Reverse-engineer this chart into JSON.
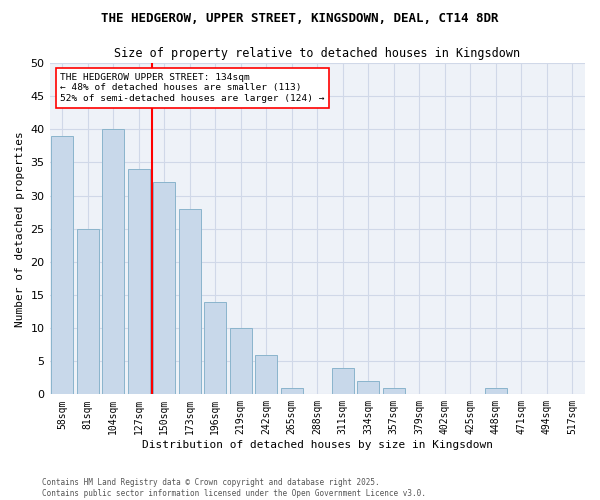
{
  "title_line1": "THE HEDGEROW, UPPER STREET, KINGSDOWN, DEAL, CT14 8DR",
  "title_line2": "Size of property relative to detached houses in Kingsdown",
  "xlabel": "Distribution of detached houses by size in Kingsdown",
  "ylabel": "Number of detached properties",
  "categories": [
    "58sqm",
    "81sqm",
    "104sqm",
    "127sqm",
    "150sqm",
    "173sqm",
    "196sqm",
    "219sqm",
    "242sqm",
    "265sqm",
    "288sqm",
    "311sqm",
    "334sqm",
    "357sqm",
    "379sqm",
    "402sqm",
    "425sqm",
    "448sqm",
    "471sqm",
    "494sqm",
    "517sqm"
  ],
  "values": [
    39,
    25,
    40,
    34,
    32,
    28,
    14,
    10,
    6,
    1,
    0,
    4,
    2,
    1,
    0,
    0,
    0,
    1,
    0,
    0,
    0
  ],
  "bar_color": "#c8d8ea",
  "bar_edge_color": "#8ab4cc",
  "grid_color": "#d0d8e8",
  "bg_color": "#eef2f8",
  "vline_bar_index": 3,
  "vline_color": "red",
  "annotation_text": "THE HEDGEROW UPPER STREET: 134sqm\n← 48% of detached houses are smaller (113)\n52% of semi-detached houses are larger (124) →",
  "annotation_box_color": "white",
  "annotation_box_edge": "red",
  "ylim": [
    0,
    50
  ],
  "yticks": [
    0,
    5,
    10,
    15,
    20,
    25,
    30,
    35,
    40,
    45,
    50
  ],
  "footer": "Contains HM Land Registry data © Crown copyright and database right 2025.\nContains public sector information licensed under the Open Government Licence v3.0."
}
